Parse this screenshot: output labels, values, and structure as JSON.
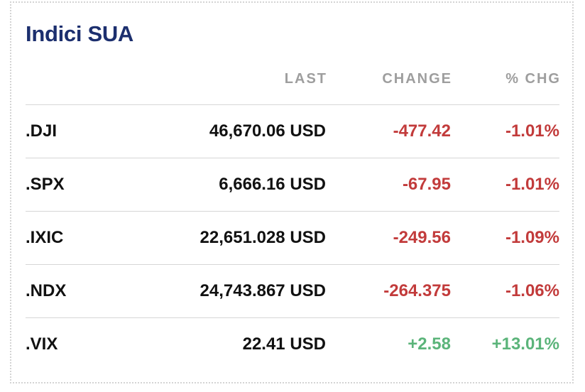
{
  "header": {
    "title": "Indici SUA"
  },
  "table": {
    "columns": [
      "",
      "LAST",
      "CHANGE",
      "% CHG"
    ],
    "rows": [
      [
        ".DJI",
        "46,670.06 USD",
        "-477.42",
        "-1.01%"
      ],
      [
        ".SPX",
        "6,666.16 USD",
        "-67.95",
        "-1.01%"
      ],
      [
        ".IXIC",
        "22,651.028 USD",
        "-249.56",
        "-1.09%"
      ],
      [
        ".NDX",
        "24,743.867 USD",
        "-264.375",
        "-1.06%"
      ],
      [
        ".VIX",
        "22.41 USD",
        "+2.58",
        "+13.01%"
      ]
    ]
  }
}
